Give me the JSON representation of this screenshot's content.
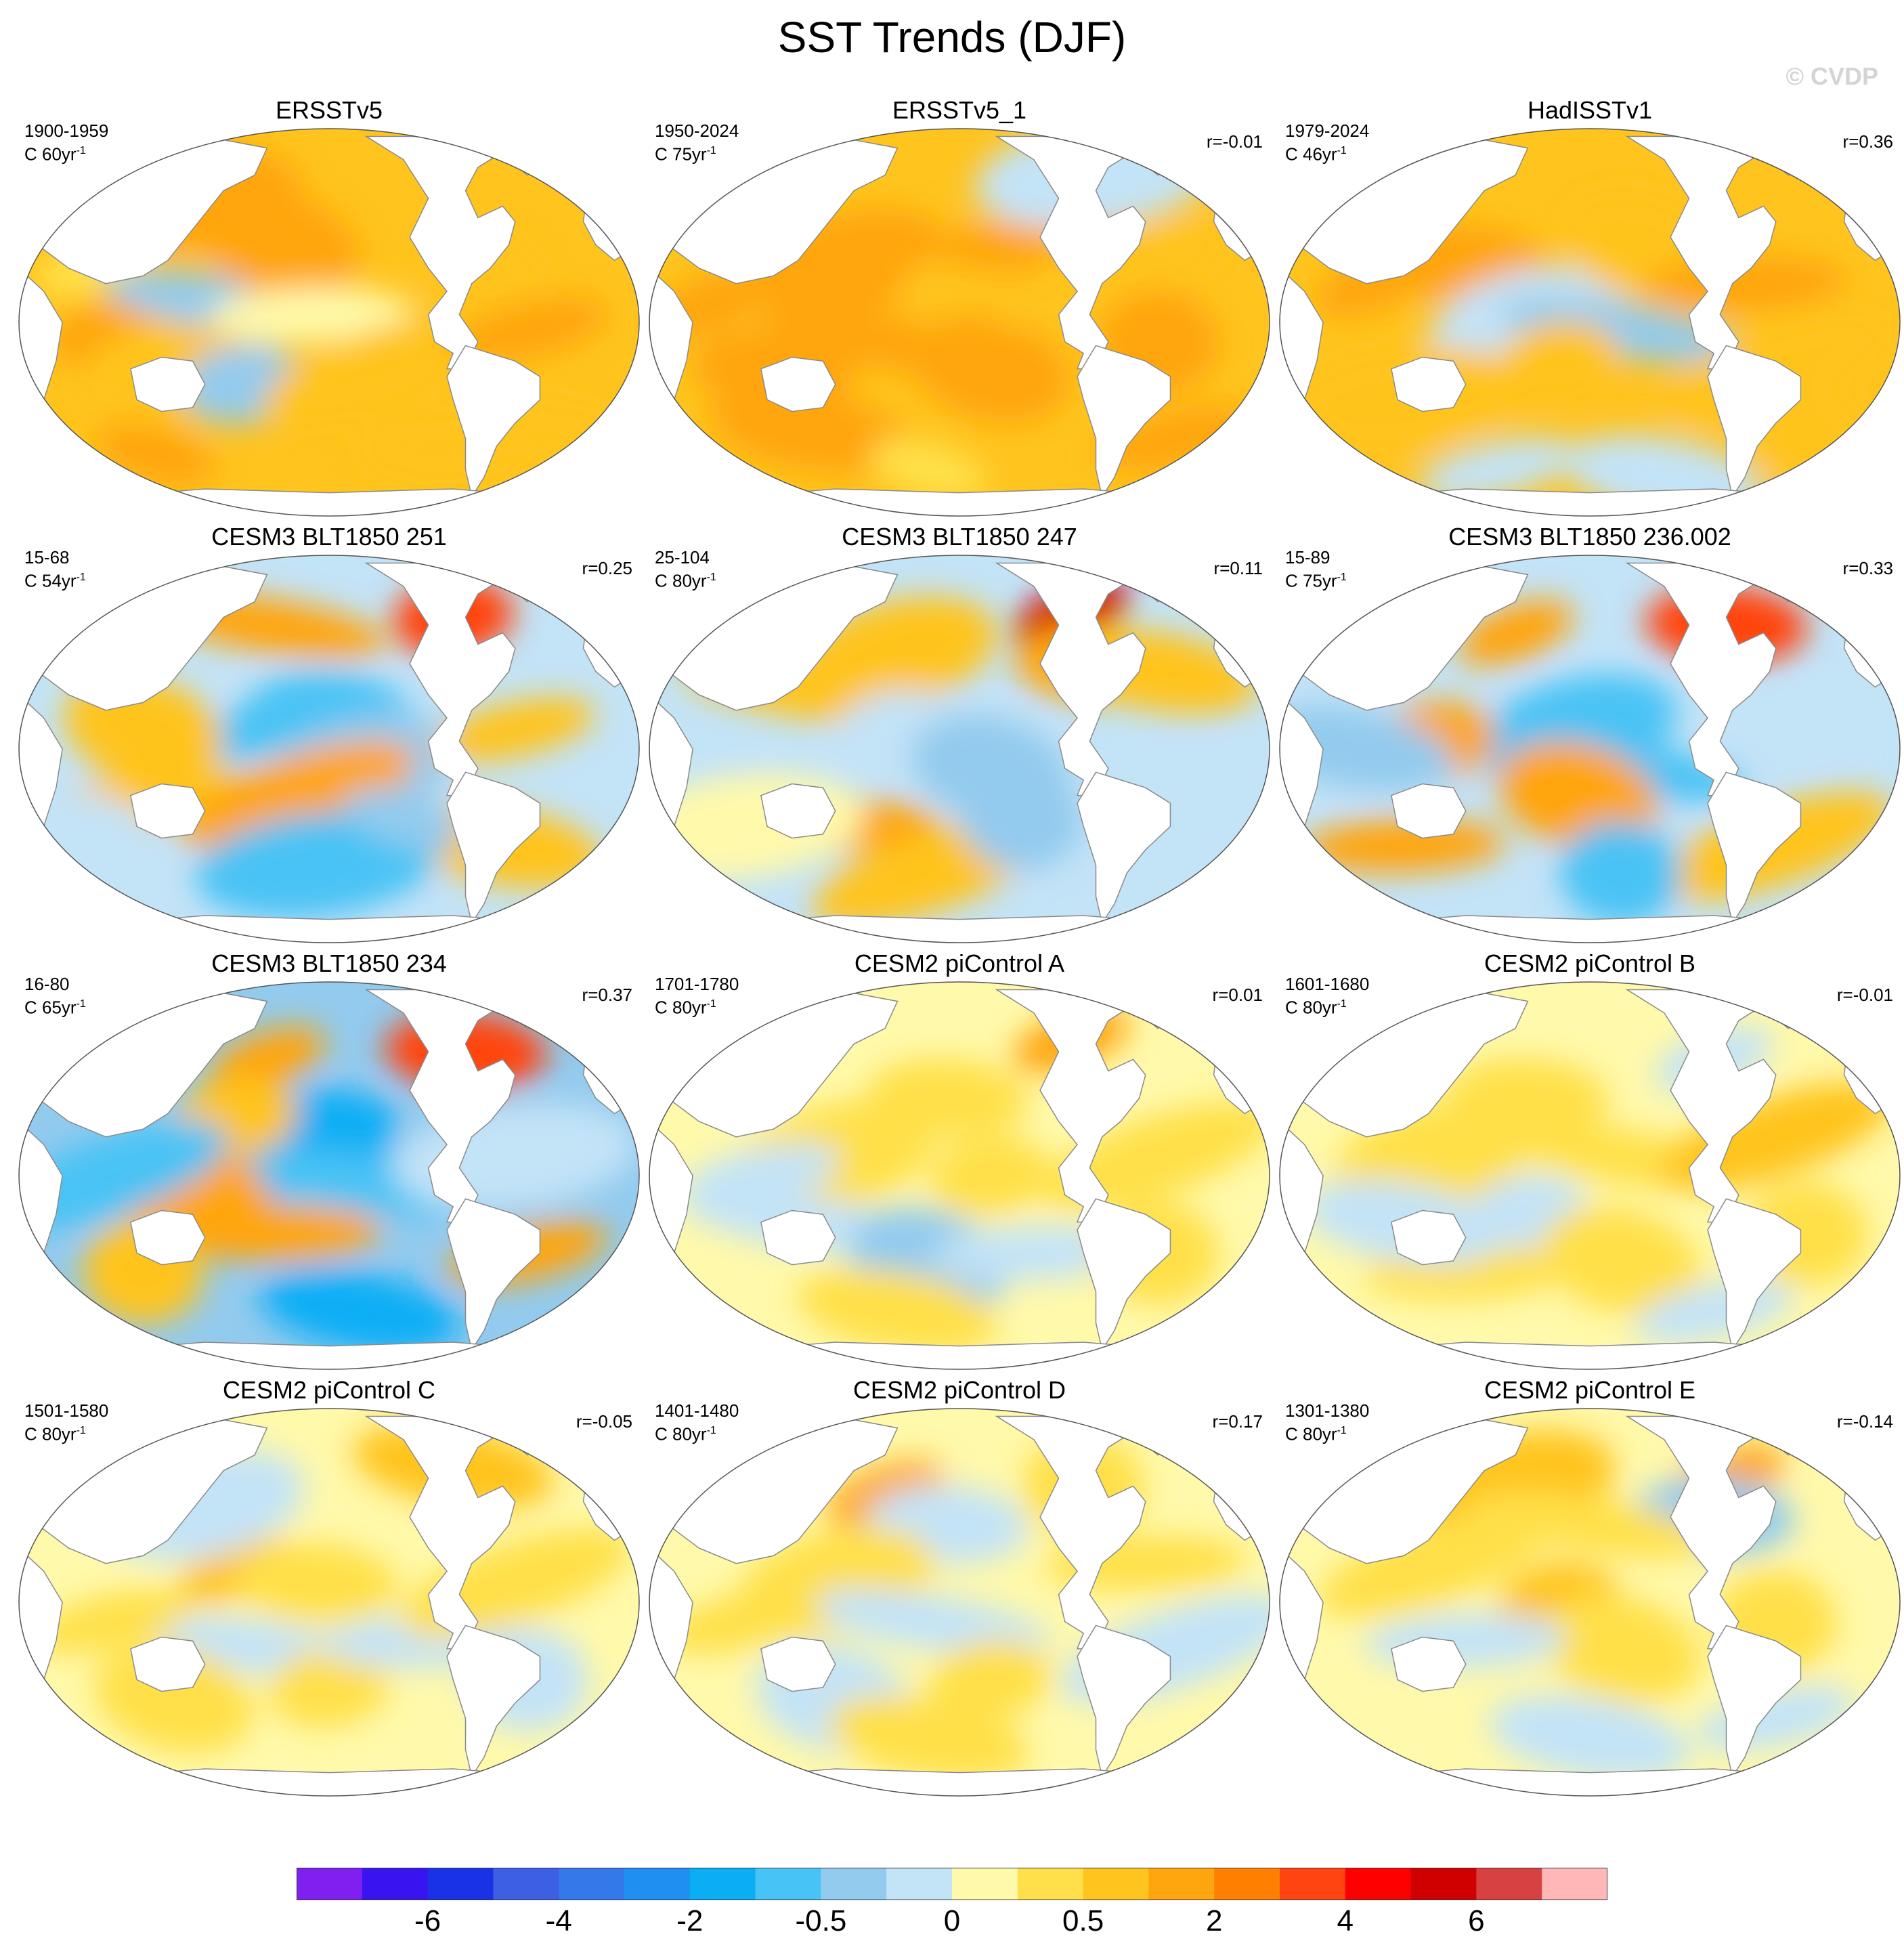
{
  "title": "SST Trends (DJF)",
  "watermark": "© CVDP",
  "colors": {
    "land": "#ffffff",
    "coast": "#8a8a8a",
    "border": "#555555"
  },
  "panels": [
    {
      "title": "ERSSTv5",
      "period": "1900-1959",
      "units": "C 60yr",
      "r": "",
      "map_shading": {
        "base": 12,
        "pools": [
          [
            0.12,
            0.35,
            11
          ],
          [
            0.18,
            0.55,
            13
          ],
          [
            0.25,
            0.62,
            12
          ],
          [
            0.33,
            0.45,
            8
          ],
          [
            0.36,
            0.66,
            8
          ],
          [
            0.42,
            0.3,
            13
          ],
          [
            0.47,
            0.48,
            10
          ],
          [
            0.58,
            0.62,
            12
          ],
          [
            0.75,
            0.4,
            12
          ],
          [
            0.82,
            0.52,
            13
          ],
          [
            0.86,
            0.8,
            12
          ],
          [
            0.26,
            0.18,
            13
          ],
          [
            0.22,
            0.84,
            13
          ],
          [
            0.68,
            0.82,
            12
          ]
        ]
      }
    },
    {
      "title": "ERSSTv5_1",
      "period": "1950-2024",
      "units": "C 75yr",
      "r": "r=-0.01",
      "map_shading": {
        "base": 12,
        "pools": [
          [
            0.1,
            0.45,
            13
          ],
          [
            0.2,
            0.62,
            13
          ],
          [
            0.32,
            0.35,
            13
          ],
          [
            0.38,
            0.55,
            13
          ],
          [
            0.5,
            0.42,
            12
          ],
          [
            0.55,
            0.62,
            13
          ],
          [
            0.62,
            0.3,
            13
          ],
          [
            0.74,
            0.38,
            12
          ],
          [
            0.82,
            0.55,
            13
          ],
          [
            0.85,
            0.8,
            13
          ],
          [
            0.26,
            0.78,
            13
          ],
          [
            0.72,
            0.12,
            9
          ],
          [
            0.45,
            0.88,
            11
          ]
        ]
      }
    },
    {
      "title": "HadISSTv1",
      "period": "1979-2024",
      "units": "C 46yr",
      "r": "r=0.36",
      "map_shading": {
        "base": 12,
        "pools": [
          [
            0.15,
            0.4,
            13
          ],
          [
            0.3,
            0.35,
            13
          ],
          [
            0.4,
            0.5,
            9
          ],
          [
            0.55,
            0.52,
            8
          ],
          [
            0.45,
            0.6,
            12
          ],
          [
            0.58,
            0.3,
            12
          ],
          [
            0.75,
            0.4,
            13
          ],
          [
            0.8,
            0.62,
            12
          ],
          [
            0.86,
            0.8,
            12
          ],
          [
            0.35,
            0.88,
            9
          ],
          [
            0.62,
            0.9,
            9
          ],
          [
            0.2,
            0.7,
            12
          ]
        ]
      }
    },
    {
      "title": "CESM3 BLT1850 251",
      "period": "15-68",
      "units": "C 54yr",
      "r": "r=0.25",
      "map_shading": {
        "base": 9,
        "pools": [
          [
            0.38,
            0.45,
            7
          ],
          [
            0.5,
            0.4,
            7
          ],
          [
            0.55,
            0.55,
            8
          ],
          [
            0.4,
            0.18,
            13
          ],
          [
            0.7,
            0.16,
            15
          ],
          [
            0.2,
            0.45,
            12
          ],
          [
            0.25,
            0.62,
            12
          ],
          [
            0.45,
            0.62,
            13
          ],
          [
            0.12,
            0.75,
            9
          ],
          [
            0.8,
            0.45,
            12
          ],
          [
            0.78,
            0.75,
            12
          ],
          [
            0.48,
            0.8,
            7
          ],
          [
            0.62,
            0.68,
            8
          ]
        ]
      }
    },
    {
      "title": "CESM3 BLT1850 247",
      "period": "25-104",
      "units": "C 80yr",
      "r": "r=0.11",
      "map_shading": {
        "base": 9,
        "pools": [
          [
            0.68,
            0.15,
            17
          ],
          [
            0.72,
            0.28,
            13
          ],
          [
            0.4,
            0.25,
            12
          ],
          [
            0.25,
            0.35,
            12
          ],
          [
            0.4,
            0.45,
            9
          ],
          [
            0.55,
            0.55,
            8
          ],
          [
            0.3,
            0.7,
            13
          ],
          [
            0.45,
            0.82,
            12
          ],
          [
            0.6,
            0.68,
            8
          ],
          [
            0.85,
            0.6,
            9
          ],
          [
            0.82,
            0.3,
            12
          ],
          [
            0.15,
            0.7,
            10
          ]
        ]
      }
    },
    {
      "title": "CESM3 BLT1850 236.002",
      "period": "15-89",
      "units": "C 75yr",
      "r": "r=0.33",
      "map_shading": {
        "base": 9,
        "pools": [
          [
            0.38,
            0.2,
            13
          ],
          [
            0.72,
            0.18,
            15
          ],
          [
            0.48,
            0.45,
            7
          ],
          [
            0.56,
            0.55,
            7
          ],
          [
            0.25,
            0.48,
            13
          ],
          [
            0.48,
            0.62,
            13
          ],
          [
            0.2,
            0.75,
            13
          ],
          [
            0.8,
            0.75,
            12
          ],
          [
            0.55,
            0.82,
            7
          ],
          [
            0.82,
            0.45,
            9
          ],
          [
            0.12,
            0.5,
            8
          ]
        ]
      }
    },
    {
      "title": "CESM3 BLT1850 234",
      "period": "16-80",
      "units": "C 65yr",
      "r": "r=0.37",
      "map_shading": {
        "base": 8,
        "pools": [
          [
            0.4,
            0.2,
            13
          ],
          [
            0.72,
            0.18,
            15
          ],
          [
            0.45,
            0.42,
            6
          ],
          [
            0.55,
            0.52,
            7
          ],
          [
            0.35,
            0.35,
            12
          ],
          [
            0.28,
            0.55,
            13
          ],
          [
            0.42,
            0.65,
            13
          ],
          [
            0.15,
            0.5,
            7
          ],
          [
            0.2,
            0.75,
            12
          ],
          [
            0.82,
            0.7,
            13
          ],
          [
            0.55,
            0.85,
            6
          ],
          [
            0.8,
            0.45,
            9
          ]
        ]
      }
    },
    {
      "title": "CESM2 piControl A",
      "period": "1701-1780",
      "units": "C 80yr",
      "r": "r=0.01",
      "map_shading": {
        "base": 10,
        "pools": [
          [
            0.68,
            0.15,
            13
          ],
          [
            0.48,
            0.3,
            11
          ],
          [
            0.3,
            0.45,
            11
          ],
          [
            0.25,
            0.62,
            9
          ],
          [
            0.55,
            0.5,
            11
          ],
          [
            0.45,
            0.72,
            8
          ],
          [
            0.62,
            0.7,
            9
          ],
          [
            0.82,
            0.45,
            11
          ],
          [
            0.82,
            0.7,
            11
          ],
          [
            0.18,
            0.5,
            9
          ],
          [
            0.4,
            0.85,
            11
          ]
        ]
      }
    },
    {
      "title": "CESM2 piControl B",
      "period": "1601-1680",
      "units": "C 80yr",
      "r": "r=-0.01",
      "map_shading": {
        "base": 10,
        "pools": [
          [
            0.7,
            0.2,
            9
          ],
          [
            0.4,
            0.3,
            11
          ],
          [
            0.25,
            0.45,
            11
          ],
          [
            0.55,
            0.45,
            11
          ],
          [
            0.4,
            0.6,
            9
          ],
          [
            0.55,
            0.72,
            11
          ],
          [
            0.3,
            0.75,
            11
          ],
          [
            0.8,
            0.4,
            12
          ],
          [
            0.85,
            0.65,
            11
          ],
          [
            0.7,
            0.85,
            9
          ],
          [
            0.2,
            0.62,
            9
          ]
        ]
      }
    },
    {
      "title": "CESM2 piControl C",
      "period": "1501-1580",
      "units": "C 80yr",
      "r": "r=-0.05",
      "map_shading": {
        "base": 10,
        "pools": [
          [
            0.35,
            0.42,
            12
          ],
          [
            0.48,
            0.45,
            11
          ],
          [
            0.3,
            0.25,
            9
          ],
          [
            0.4,
            0.62,
            9
          ],
          [
            0.5,
            0.72,
            11
          ],
          [
            0.25,
            0.75,
            11
          ],
          [
            0.65,
            0.6,
            9
          ],
          [
            0.8,
            0.45,
            11
          ],
          [
            0.82,
            0.7,
            9
          ],
          [
            0.15,
            0.55,
            11
          ],
          [
            0.7,
            0.15,
            12
          ]
        ]
      }
    },
    {
      "title": "CESM2 piControl D",
      "period": "1401-1480",
      "units": "C 80yr",
      "r": "r=0.17",
      "map_shading": {
        "base": 10,
        "pools": [
          [
            0.38,
            0.22,
            13
          ],
          [
            0.48,
            0.3,
            9
          ],
          [
            0.3,
            0.45,
            11
          ],
          [
            0.45,
            0.55,
            9
          ],
          [
            0.55,
            0.7,
            11
          ],
          [
            0.3,
            0.75,
            9
          ],
          [
            0.8,
            0.4,
            11
          ],
          [
            0.85,
            0.62,
            9
          ],
          [
            0.7,
            0.2,
            11
          ],
          [
            0.15,
            0.55,
            11
          ],
          [
            0.45,
            0.85,
            11
          ]
        ]
      }
    },
    {
      "title": "CESM2 piControl E",
      "period": "1301-1380",
      "units": "C 80yr",
      "r": "r=-0.14",
      "map_shading": {
        "base": 10,
        "pools": [
          [
            0.72,
            0.18,
            13
          ],
          [
            0.7,
            0.28,
            8
          ],
          [
            0.38,
            0.2,
            12
          ],
          [
            0.5,
            0.3,
            11
          ],
          [
            0.45,
            0.5,
            12
          ],
          [
            0.55,
            0.62,
            11
          ],
          [
            0.3,
            0.6,
            9
          ],
          [
            0.25,
            0.4,
            11
          ],
          [
            0.8,
            0.55,
            11
          ],
          [
            0.8,
            0.8,
            9
          ],
          [
            0.5,
            0.85,
            9
          ]
        ]
      }
    }
  ],
  "colorbar": {
    "colors": [
      "#7f1ff0",
      "#3a14f0",
      "#1a32e6",
      "#3c5fe3",
      "#3478ea",
      "#1f8ff2",
      "#0aaef5",
      "#48c3f5",
      "#93cbee",
      "#c3e3f7",
      "#fff9ab",
      "#ffe04a",
      "#ffc41e",
      "#ffa50e",
      "#ff8000",
      "#ff4411",
      "#ff0000",
      "#d10000",
      "#d84141",
      "#ffb7b7"
    ],
    "labels": [
      "-6",
      "-4",
      "-2",
      "-0.5",
      "0",
      "0.5",
      "2",
      "4",
      "6"
    ]
  }
}
